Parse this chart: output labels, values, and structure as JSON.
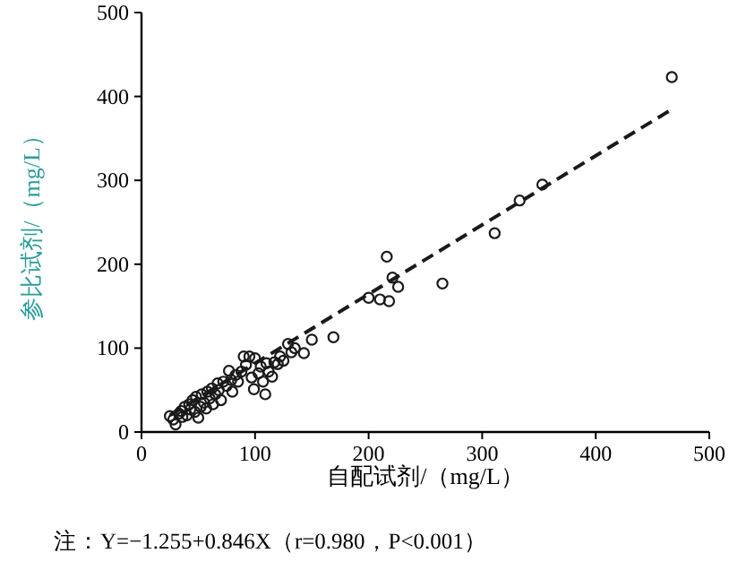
{
  "chart_data": {
    "type": "scatter",
    "xlabel": "自配试剂/（mg/L）",
    "ylabel": "参比试剂/（mg/L）",
    "annotations": [
      "注：Y=−1.255+0.846X（r=0.980，P<0.001）"
    ],
    "xlim": [
      0,
      500
    ],
    "ylim": [
      0,
      500
    ],
    "xticks": [
      0,
      100,
      200,
      300,
      400,
      500
    ],
    "yticks": [
      0,
      100,
      200,
      300,
      400,
      500
    ],
    "grid": false,
    "series": [
      {
        "color": "#1a1a1a",
        "x": [
          25,
          28,
          30,
          33,
          35,
          36,
          38,
          40,
          42,
          43,
          45,
          47,
          48,
          50,
          52,
          53,
          55,
          57,
          58,
          60,
          62,
          63,
          65,
          67,
          68,
          70,
          72,
          75,
          77,
          79,
          80,
          83,
          85,
          88,
          90,
          92,
          95,
          97,
          99,
          100,
          103,
          105,
          107,
          109,
          110,
          112,
          115,
          117,
          120,
          122,
          125,
          129,
          132,
          135,
          143,
          150,
          169,
          200,
          210,
          216,
          218,
          221,
          226,
          265,
          311,
          333,
          353,
          467
        ],
        "values": [
          19,
          15,
          9,
          22,
          25,
          18,
          30,
          20,
          33,
          27,
          38,
          24,
          42,
          17,
          30,
          45,
          35,
          28,
          48,
          40,
          52,
          33,
          45,
          58,
          50,
          38,
          60,
          55,
          73,
          62,
          48,
          68,
          60,
          72,
          90,
          80,
          90,
          65,
          51,
          88,
          70,
          78,
          60,
          45,
          82,
          72,
          66,
          83,
          81,
          90,
          85,
          105,
          95,
          100,
          94,
          110,
          113,
          160,
          158,
          209,
          156,
          184,
          173,
          177,
          237,
          276,
          295,
          423
        ],
        "marker": "circle"
      },
      {
        "type": "line",
        "line_style": "dashed",
        "color": "#1a1a1a",
        "x": [
          25,
          465
        ],
        "values": [
          20,
          383
        ]
      }
    ]
  }
}
